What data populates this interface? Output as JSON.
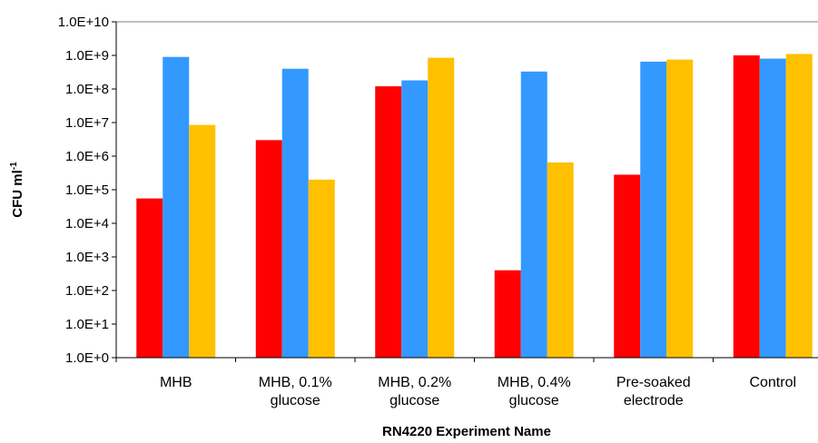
{
  "chart_data": {
    "type": "bar",
    "title": "",
    "xlabel": "RN4220 Experiment Name",
    "ylabel": "CFU ml",
    "ylabel_superscript": "-1",
    "yscale": "log",
    "ylim": [
      1,
      10000000000
    ],
    "yticks": [
      "1.0E+0",
      "1.0E+1",
      "1.0E+2",
      "1.0E+3",
      "1.0E+4",
      "1.0E+5",
      "1.0E+6",
      "1.0E+7",
      "1.0E+8",
      "1.0E+9",
      "1.0E+10"
    ],
    "grid": false,
    "legend": false,
    "categories": [
      [
        "MHB"
      ],
      [
        "MHB, 0.1%",
        "glucose"
      ],
      [
        "MHB, 0.2%",
        "glucose"
      ],
      [
        "MHB, 0.4%",
        "glucose"
      ],
      [
        "Pre-soaked",
        "electrode"
      ],
      [
        "Control"
      ]
    ],
    "series": [
      {
        "color": "#ff0000",
        "values": [
          55000,
          3000000,
          120000000,
          400,
          280000,
          1000000000
        ]
      },
      {
        "color": "#3399ff",
        "values": [
          900000000,
          400000000,
          180000000,
          330000000,
          650000000,
          800000000
        ]
      },
      {
        "color": "#ffc000",
        "values": [
          8500000,
          200000,
          850000000,
          650000,
          750000000,
          1100000000
        ]
      }
    ]
  }
}
